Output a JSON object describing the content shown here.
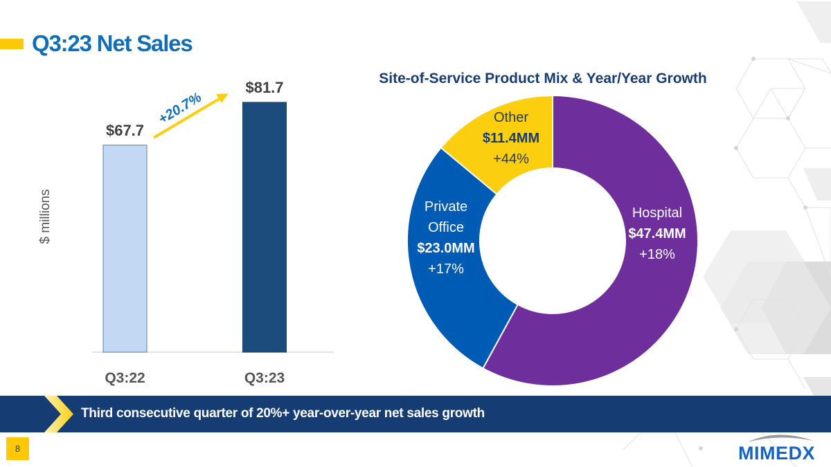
{
  "slide": {
    "title": "Q3:23 Net Sales",
    "banner_text": "Third consecutive quarter of 20%+ year-over-year net sales growth",
    "page_number": "8",
    "logo_text": "MIMEDX"
  },
  "colors": {
    "title_blue": "#0E6FB8",
    "accent_yellow": "#FFC907",
    "banner_navy": "#163D73",
    "bar_q3_22": "#C3D8F3",
    "bar_q3_23": "#1B4C7C",
    "hospital": "#6E2F9C",
    "private_office": "#005BB5",
    "other": "#FBCF10",
    "chart_title": "#163D73"
  },
  "chart_data": [
    {
      "type": "bar",
      "title": "",
      "xlabel": "",
      "ylabel": "$ millions",
      "categories": [
        "Q3:22",
        "Q3:23"
      ],
      "values": [
        67.7,
        81.7
      ],
      "value_labels": [
        "$67.7",
        "$81.7"
      ],
      "ylim": [
        0,
        115
      ],
      "grid": false,
      "annotation": {
        "text": "+20.7%",
        "type": "growth-arrow",
        "from": "Q3:22",
        "to": "Q3:23"
      }
    },
    {
      "type": "pie",
      "variant": "donut",
      "title": "Site-of-Service Product Mix & Year/Year Growth",
      "unit": "$MM",
      "slices": [
        {
          "name": "Hospital",
          "value": 47.4,
          "value_label": "$47.4MM",
          "growth": "+18%",
          "color": "#6E2F9C"
        },
        {
          "name": "Private Office",
          "label_lines": [
            "Private",
            "Office"
          ],
          "value": 23.0,
          "value_label": "$23.0MM",
          "growth": "+17%",
          "color": "#005BB5"
        },
        {
          "name": "Other",
          "label_lines": [
            "Other"
          ],
          "value": 11.4,
          "value_label": "$11.4MM",
          "growth": "+44%",
          "color": "#FBCF10"
        }
      ],
      "start": "top",
      "direction": "clockwise"
    }
  ]
}
